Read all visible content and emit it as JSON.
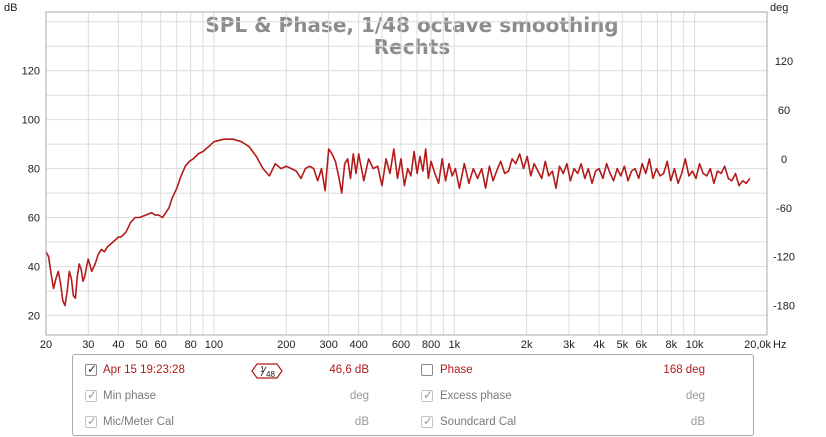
{
  "chart_data": {
    "type": "line",
    "title": "SPL & Phase, 1/48 octave smoothing",
    "subtitle": "Rechts",
    "y_left_unit": "dB",
    "y_right_unit": "deg",
    "x_unit": "Hz",
    "x_scale": "log",
    "xlim": [
      20,
      20000
    ],
    "ylim_left": [
      12,
      144
    ],
    "ylim_right": [
      -216,
      180
    ],
    "y_left_ticks": [
      "20",
      "40",
      "60",
      "80",
      "100",
      "120"
    ],
    "y_right_ticks": [
      "-180",
      "-120",
      "-60",
      "0",
      "60",
      "120"
    ],
    "x_tick_labels": [
      "20",
      "30",
      "40",
      "50",
      "60",
      "80",
      "100",
      "200",
      "300",
      "400",
      "600",
      "800",
      "1k",
      "2k",
      "3k",
      "4k",
      "5k",
      "6k",
      "8k",
      "10k",
      "20,0k"
    ],
    "grid": true,
    "series": [
      {
        "name": "Apr 15 19:23:28",
        "color": "#b31b1b",
        "x": [
          20,
          20.5,
          21,
          21.5,
          22,
          22.5,
          23,
          23.5,
          24,
          24.5,
          25,
          25.5,
          26,
          26.5,
          27,
          27.5,
          28,
          28.5,
          29,
          29.5,
          30,
          31,
          32,
          33,
          34,
          35,
          36,
          37,
          38,
          39,
          40,
          41,
          42,
          43,
          44,
          45,
          47,
          49,
          52,
          55,
          57,
          59,
          61,
          63,
          65,
          67,
          70,
          73,
          76,
          79,
          82,
          86,
          90,
          95,
          100,
          110,
          120,
          130,
          140,
          150,
          160,
          170,
          180,
          190,
          200,
          210,
          220,
          230,
          240,
          250,
          260,
          270,
          280,
          290,
          300,
          310,
          320,
          330,
          340,
          350,
          360,
          370,
          380,
          390,
          400,
          420,
          440,
          460,
          480,
          500,
          520,
          540,
          560,
          580,
          600,
          620,
          640,
          660,
          680,
          700,
          720,
          740,
          760,
          780,
          800,
          830,
          860,
          890,
          920,
          950,
          980,
          1010,
          1050,
          1100,
          1150,
          1200,
          1250,
          1300,
          1350,
          1400,
          1450,
          1500,
          1560,
          1620,
          1680,
          1740,
          1800,
          1870,
          1940,
          2010,
          2080,
          2150,
          2230,
          2310,
          2390,
          2470,
          2560,
          2650,
          2740,
          2840,
          2940,
          3040,
          3150,
          3260,
          3370,
          3490,
          3610,
          3740,
          3870,
          4000,
          4150,
          4300,
          4450,
          4600,
          4760,
          4930,
          5100,
          5280,
          5460,
          5650,
          5850,
          6050,
          6260,
          6480,
          6710,
          6940,
          7180,
          7430,
          7690,
          7960,
          8240,
          8530,
          8830,
          9140,
          9460,
          9790,
          10130,
          10480,
          10850,
          11230,
          11620,
          12030,
          12450,
          12890,
          13340,
          13800,
          14290,
          14790,
          15300,
          15840,
          16400,
          16970
        ],
        "y": [
          46,
          44,
          37,
          31,
          35,
          38,
          33,
          26,
          24,
          30,
          38,
          35,
          28,
          27,
          36,
          41,
          39,
          34,
          36,
          40,
          43,
          38,
          41,
          45,
          47,
          46,
          48,
          49,
          50,
          51,
          52,
          52,
          53,
          54,
          56,
          58,
          60,
          60,
          61,
          62,
          61,
          61,
          60,
          62,
          64,
          68,
          72,
          77,
          81,
          83,
          84,
          86,
          87,
          89,
          91,
          92,
          92,
          91,
          89,
          85,
          80,
          77,
          82,
          80,
          81,
          80,
          79,
          76,
          80,
          81,
          80,
          75,
          80,
          71,
          88,
          86,
          83,
          77,
          70,
          82,
          84,
          76,
          86,
          78,
          86,
          75,
          84,
          80,
          81,
          73,
          84,
          78,
          88,
          76,
          84,
          73,
          80,
          77,
          87,
          78,
          85,
          79,
          88,
          76,
          83,
          78,
          74,
          84,
          75,
          82,
          77,
          80,
          72,
          82,
          74,
          80,
          76,
          80,
          72,
          81,
          75,
          79,
          83,
          78,
          79,
          84,
          82,
          86,
          80,
          85,
          77,
          82,
          79,
          76,
          83,
          77,
          79,
          72,
          81,
          78,
          82,
          75,
          80,
          78,
          82,
          76,
          80,
          74,
          79,
          80,
          76,
          82,
          78,
          75,
          80,
          77,
          81,
          75,
          79,
          80,
          76,
          82,
          78,
          84,
          76,
          80,
          77,
          78,
          83,
          75,
          80,
          74,
          78,
          84,
          77,
          79,
          76,
          82,
          78,
          77,
          80,
          74,
          79,
          78,
          81,
          76,
          75,
          78,
          73,
          75,
          74,
          76
        ]
      }
    ]
  },
  "legend": {
    "row1": {
      "label": "Apr 15 19:23:28",
      "checked": true,
      "smoothing_num": "1",
      "smoothing_den": "48",
      "value": "46,6 dB",
      "phase_label": "Phase",
      "phase_checked": false,
      "phase_value": "168 deg"
    },
    "row2": {
      "label": "Min phase",
      "checked": true,
      "value": "deg",
      "right_label": "Excess phase",
      "right_checked": true,
      "right_value": "deg"
    },
    "row3": {
      "label": "Mic/Meter Cal",
      "checked": true,
      "value": "dB",
      "right_label": "Soundcard Cal",
      "right_checked": true,
      "right_value": "dB"
    }
  },
  "colors": {
    "trace": "#b31b1b",
    "accent_red": "#b21a1a",
    "grid": "#dcdcdc",
    "frame": "#a8a8a8"
  }
}
